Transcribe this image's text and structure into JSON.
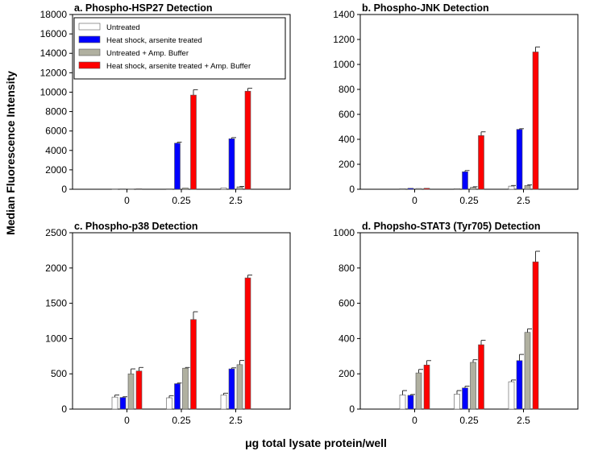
{
  "xlabel": "μg total lysate protein/well",
  "ylabel": "Median Fluorescence Intensity",
  "legend": {
    "position": "top-left (inside panel a)",
    "entries": [
      {
        "label": "Untreated",
        "color": "#ffffff"
      },
      {
        "label": "Heat shock, arsenite treated",
        "color": "#0000ff"
      },
      {
        "label": "Untreated + Amp. Buffer",
        "color": "#b0b0a0"
      },
      {
        "label": "Heat shock, arsenite treated + Amp. Buffer",
        "color": "#ff0000"
      }
    ]
  },
  "chart_data": [
    {
      "type": "bar",
      "title": "a. Phospho-HSP27 Detection",
      "categories": [
        "0",
        "0.25",
        "2.5"
      ],
      "ylim": [
        0,
        18000
      ],
      "yticks": [
        "0",
        "2000",
        "4000",
        "6000",
        "8000",
        "10000",
        "12000",
        "14000",
        "16000",
        "18000"
      ],
      "series": [
        {
          "name": "Untreated",
          "values": [
            30,
            40,
            150
          ],
          "errors": [
            0,
            0,
            0
          ]
        },
        {
          "name": "Heat shock, arsenite treated",
          "values": [
            40,
            4750,
            5200
          ],
          "errors": [
            0,
            100,
            120
          ]
        },
        {
          "name": "Untreated + Amp. Buffer",
          "values": [
            30,
            130,
            250
          ],
          "errors": [
            0,
            0,
            40
          ]
        },
        {
          "name": "Heat shock, arsenite treated + Amp. Buffer",
          "values": [
            50,
            9700,
            10100
          ],
          "errors": [
            0,
            550,
            300
          ]
        }
      ]
    },
    {
      "type": "bar",
      "title": "b. Phospho-JNK Detection",
      "categories": [
        "0",
        "0.25",
        "2.5"
      ],
      "ylim": [
        0,
        1400
      ],
      "yticks": [
        "0",
        "200",
        "400",
        "600",
        "800",
        "1000",
        "1200",
        "1400"
      ],
      "series": [
        {
          "name": "Untreated",
          "values": [
            5,
            5,
            25
          ],
          "errors": [
            0,
            0,
            5
          ]
        },
        {
          "name": "Heat shock, arsenite treated",
          "values": [
            8,
            140,
            480
          ],
          "errors": [
            0,
            10,
            5
          ]
        },
        {
          "name": "Untreated + Amp. Buffer",
          "values": [
            6,
            15,
            30
          ],
          "errors": [
            0,
            5,
            5
          ]
        },
        {
          "name": "Heat shock, arsenite treated + Amp. Buffer",
          "values": [
            8,
            430,
            1100
          ],
          "errors": [
            0,
            30,
            40
          ]
        }
      ]
    },
    {
      "type": "bar",
      "title": "c. Phospho-p38 Detection",
      "categories": [
        "0",
        "0.25",
        "2.5"
      ],
      "ylim": [
        0,
        2500
      ],
      "yticks": [
        "0",
        "500",
        "1000",
        "1500",
        "2000",
        "2500"
      ],
      "series": [
        {
          "name": "Untreated",
          "values": [
            170,
            160,
            200
          ],
          "errors": [
            30,
            30,
            25
          ]
        },
        {
          "name": "Heat shock, arsenite treated",
          "values": [
            165,
            360,
            570
          ],
          "errors": [
            10,
            10,
            15
          ]
        },
        {
          "name": "Untreated + Amp. Buffer",
          "values": [
            500,
            580,
            630
          ],
          "errors": [
            70,
            10,
            60
          ]
        },
        {
          "name": "Heat shock, arsenite treated + Amp. Buffer",
          "values": [
            540,
            1270,
            1860
          ],
          "errors": [
            50,
            110,
            40
          ]
        }
      ]
    },
    {
      "type": "bar",
      "title": "d. Phopsho-STAT3 (Tyr705) Detection",
      "categories": [
        "0",
        "0.25",
        "2.5"
      ],
      "ylim": [
        0,
        1000
      ],
      "yticks": [
        "0",
        "200",
        "400",
        "600",
        "800",
        "1000"
      ],
      "series": [
        {
          "name": "Untreated",
          "values": [
            80,
            85,
            155
          ],
          "errors": [
            25,
            20,
            10
          ]
        },
        {
          "name": "Heat shock, arsenite treated",
          "values": [
            78,
            120,
            275
          ],
          "errors": [
            5,
            10,
            35
          ]
        },
        {
          "name": "Untreated + Amp. Buffer",
          "values": [
            205,
            265,
            435
          ],
          "errors": [
            20,
            15,
            20
          ]
        },
        {
          "name": "Heat shock, arsenite treated + Amp. Buffer",
          "values": [
            250,
            365,
            835
          ],
          "errors": [
            25,
            25,
            60
          ]
        }
      ]
    }
  ]
}
